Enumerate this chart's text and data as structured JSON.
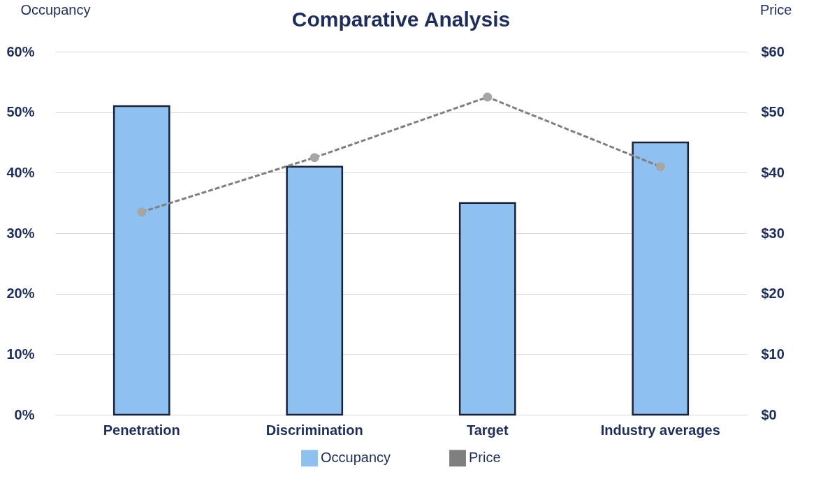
{
  "chart_data": {
    "type": "bar",
    "title": "Comparative Analysis",
    "ylabel": "Occupancy",
    "y2label": "Price",
    "categories": [
      "Penetration",
      "Discrimination",
      "Target",
      "Industry averages"
    ],
    "series": [
      {
        "name": "Occupancy",
        "color": "#8ec1ef",
        "values": [
          51,
          41,
          35,
          45
        ]
      },
      {
        "name": "Price",
        "type": "line",
        "axis": "y2",
        "color": "#7f7f7f",
        "values": [
          33.5,
          42.5,
          52.5,
          41
        ],
        "marker": "circle",
        "line_style": "dashed"
      }
    ],
    "ylim": [
      0,
      60
    ],
    "yticks": [
      {
        "value": 0,
        "label": "0%"
      },
      {
        "value": 10,
        "label": "10%"
      },
      {
        "value": 20,
        "label": "20%"
      },
      {
        "value": 30,
        "label": "30%"
      },
      {
        "value": 40,
        "label": "40%"
      },
      {
        "value": 50,
        "label": "50%"
      },
      {
        "value": 60,
        "label": "60%"
      }
    ],
    "y2lim": [
      0,
      60
    ],
    "y2ticks": [
      {
        "value": 0,
        "label": "$0"
      },
      {
        "value": 10,
        "label": "$10"
      },
      {
        "value": 20,
        "label": "$20"
      },
      {
        "value": 30,
        "label": "$30"
      },
      {
        "value": 40,
        "label": "$40"
      },
      {
        "value": 50,
        "label": "$50"
      },
      {
        "value": 60,
        "label": "$60"
      }
    ],
    "grid": "y",
    "legend": "bottom"
  }
}
